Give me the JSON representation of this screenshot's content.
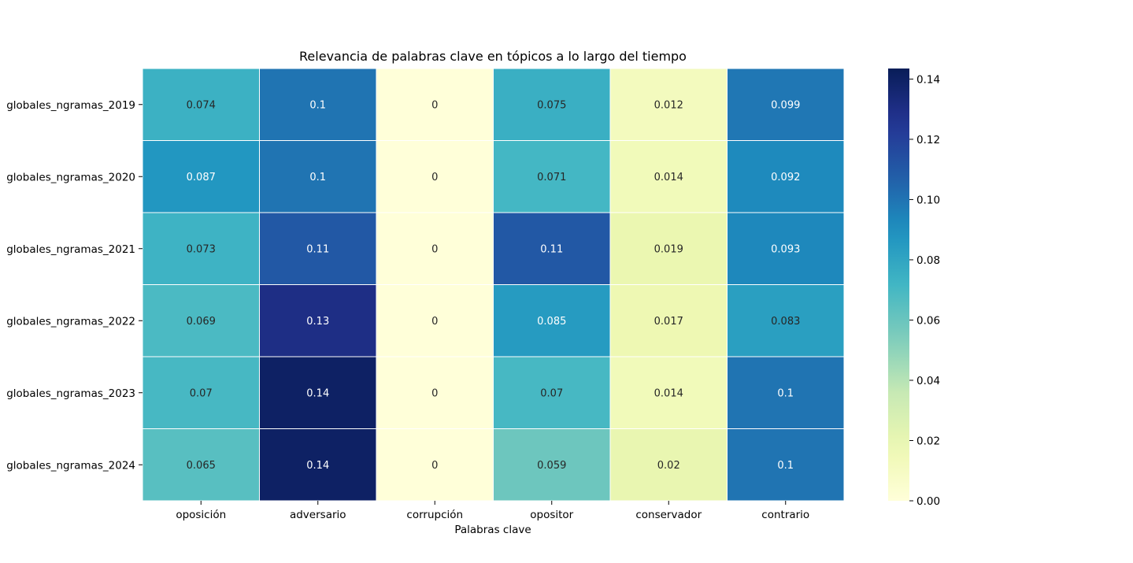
{
  "chart_data": {
    "type": "heatmap",
    "title": "Relevancia de palabras clave en tópicos a lo largo del tiempo",
    "xlabel": "Palabras clave",
    "ylabel": "",
    "columns": [
      "oposición",
      "adversario",
      "corrupción",
      "opositor",
      "conservador",
      "contrario"
    ],
    "rows": [
      "globales_ngramas_2019",
      "globales_ngramas_2020",
      "globales_ngramas_2021",
      "globales_ngramas_2022",
      "globales_ngramas_2023",
      "globales_ngramas_2024"
    ],
    "values": [
      [
        0.074,
        0.1,
        0,
        0.075,
        0.012,
        0.099
      ],
      [
        0.087,
        0.1,
        0,
        0.071,
        0.014,
        0.092
      ],
      [
        0.073,
        0.11,
        0,
        0.11,
        0.019,
        0.093
      ],
      [
        0.069,
        0.13,
        0,
        0.085,
        0.017,
        0.083
      ],
      [
        0.07,
        0.14,
        0,
        0.07,
        0.014,
        0.1
      ],
      [
        0.065,
        0.14,
        0,
        0.059,
        0.02,
        0.1
      ]
    ],
    "value_labels": [
      [
        "0.074",
        "0.1",
        "0",
        "0.075",
        "0.012",
        "0.099"
      ],
      [
        "0.087",
        "0.1",
        "0",
        "0.071",
        "0.014",
        "0.092"
      ],
      [
        "0.073",
        "0.11",
        "0",
        "0.11",
        "0.019",
        "0.093"
      ],
      [
        "0.069",
        "0.13",
        "0",
        "0.085",
        "0.017",
        "0.083"
      ],
      [
        "0.07",
        "0.14",
        "0",
        "0.07",
        "0.014",
        "0.1"
      ],
      [
        "0.065",
        "0.14",
        "0",
        "0.059",
        "0.02",
        "0.1"
      ]
    ],
    "colormap": "YlGnBu",
    "colorbar": {
      "range": [
        0,
        0.1435
      ],
      "ticks": [
        0,
        0.02,
        0.04,
        0.06,
        0.08,
        0.1,
        0.12,
        0.14
      ],
      "tick_labels": [
        "0.00",
        "0.02",
        "0.04",
        "0.06",
        "0.08",
        "0.10",
        "0.12",
        "0.14"
      ]
    },
    "grid": false,
    "cell_separator_color": "#ffffff"
  }
}
